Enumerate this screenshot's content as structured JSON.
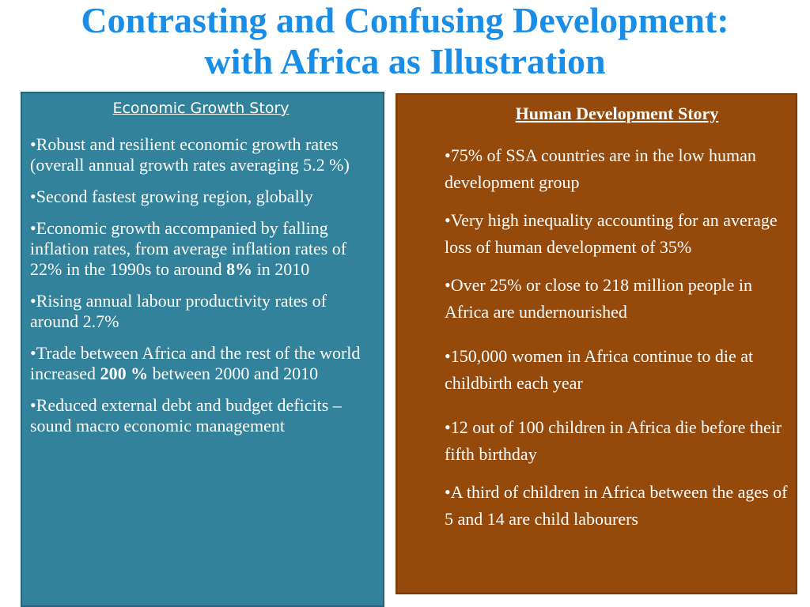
{
  "title": {
    "line1": "Contrasting and Confusing Development:",
    "line2": "with Africa as Illustration"
  },
  "left_panel": {
    "heading": "Economic Growth Story",
    "bullets": [
      {
        "text": "•Robust and resilient economic growth rates (overall annual growth rates averaging 5.2 %)"
      },
      {
        "text": "•Second fastest growing region, globally"
      },
      {
        "before": "•Economic growth accompanied by falling inflation rates, from average inflation rates of 22% in the 1990s to around ",
        "bold": "8%",
        "after": " in 2010"
      },
      {
        "text": "•Rising annual labour productivity rates of around 2.7%"
      },
      {
        "before": "•Trade between Africa and the rest of the world increased ",
        "bold": "200 %",
        "after": " between 2000 and 2010"
      },
      {
        "text": "•Reduced external debt and budget deficits – sound macro economic management"
      }
    ]
  },
  "right_panel": {
    "heading": "Human Development Story",
    "bullets": [
      "•75% of SSA countries are in the low human development group",
      "•Very high inequality accounting for an average loss of human development of 35%",
      "•Over 25% or close to 218 million people in Africa are undernourished",
      "•150,000 women in Africa continue to die at childbirth each year",
      "•12 out of 100 children in Africa die before their fifth birthday",
      "•A third of children in Africa between the ages of 5 and 14 are child labourers"
    ]
  },
  "colors": {
    "title": "#1a8ee6",
    "left_panel_bg": "#31829a",
    "right_panel_bg": "#954a0b",
    "text": "#ffffff"
  }
}
